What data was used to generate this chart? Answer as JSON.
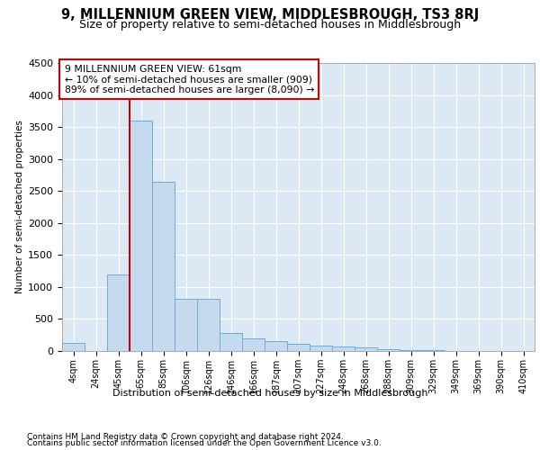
{
  "title": "9, MILLENNIUM GREEN VIEW, MIDDLESBROUGH, TS3 8RJ",
  "subtitle": "Size of property relative to semi-detached houses in Middlesbrough",
  "xlabel": "Distribution of semi-detached houses by size in Middlesbrough",
  "ylabel": "Number of semi-detached properties",
  "footnote1": "Contains HM Land Registry data © Crown copyright and database right 2024.",
  "footnote2": "Contains public sector information licensed under the Open Government Licence v3.0.",
  "annotation_title": "9 MILLENNIUM GREEN VIEW: 61sqm",
  "annotation_line1": "← 10% of semi-detached houses are smaller (909)",
  "annotation_line2": "89% of semi-detached houses are larger (8,090) →",
  "bar_categories": [
    "4sqm",
    "24sqm",
    "45sqm",
    "65sqm",
    "85sqm",
    "106sqm",
    "126sqm",
    "146sqm",
    "166sqm",
    "187sqm",
    "207sqm",
    "227sqm",
    "248sqm",
    "268sqm",
    "288sqm",
    "309sqm",
    "329sqm",
    "349sqm",
    "369sqm",
    "390sqm",
    "410sqm"
  ],
  "bar_values": [
    130,
    0,
    1200,
    3600,
    2650,
    820,
    820,
    280,
    190,
    150,
    110,
    90,
    75,
    55,
    30,
    15,
    8,
    4,
    2,
    1,
    0
  ],
  "bar_color": "#c5d9ef",
  "bar_edge_color": "#6baed6",
  "vline_color": "#cc0000",
  "vline_x": 2.5,
  "annotation_box_color": "#cc0000",
  "ylim": [
    0,
    4500
  ],
  "yticks": [
    0,
    500,
    1000,
    1500,
    2000,
    2500,
    3000,
    3500,
    4000,
    4500
  ],
  "background_color": "#dce9f5",
  "fig_background": "#ffffff",
  "title_fontsize": 10.5,
  "subtitle_fontsize": 9
}
